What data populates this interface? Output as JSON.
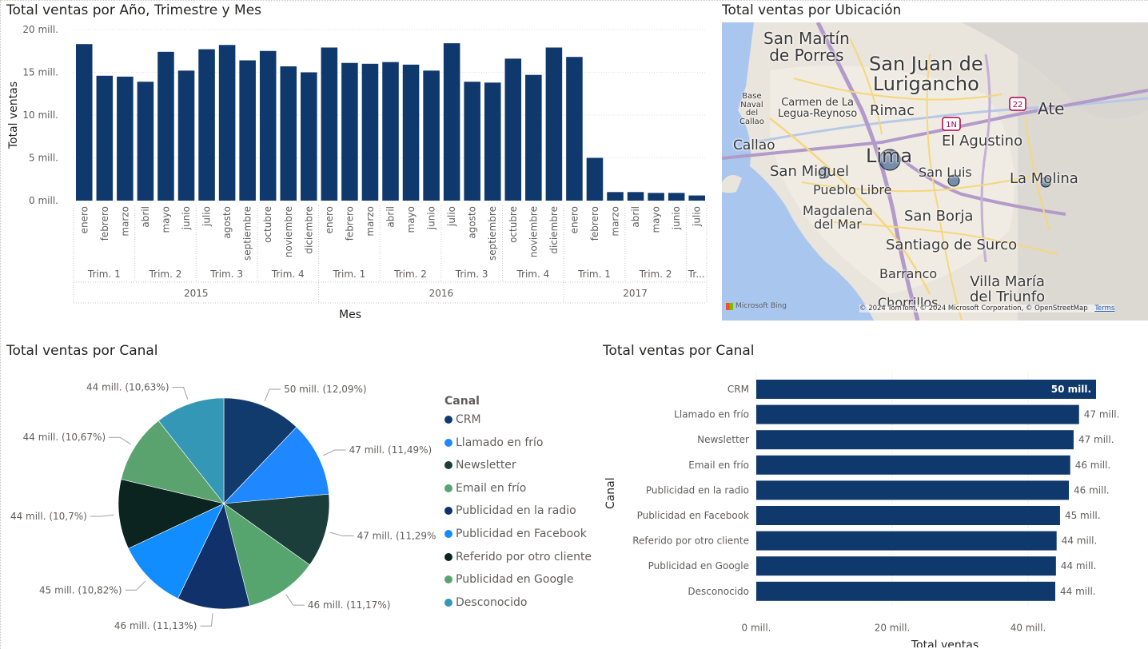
{
  "titles": {
    "bar_time": "Total ventas por Año, Trimestre y Mes",
    "map": "Total ventas por Ubicación",
    "pie": "Total ventas por Canal",
    "hbar": "Total ventas por Canal"
  },
  "colors": {
    "bar": "#0f386c",
    "text": "#252423",
    "axis_text": "#605e5c",
    "grid": "#e1dfdd"
  },
  "chart_data": [
    {
      "type": "bar",
      "title": "Total ventas por Año, Trimestre y Mes",
      "xlabel": "Mes",
      "ylabel": "Total ventas",
      "ylim": [
        0,
        20
      ],
      "yticks": [
        "0 mill.",
        "5 mill.",
        "10 mill.",
        "15 mill.",
        "20 mill."
      ],
      "grid": true,
      "categories": [
        "enero",
        "febrero",
        "marzo",
        "abril",
        "mayo",
        "junio",
        "julio",
        "agosto",
        "septiembre",
        "octubre",
        "noviembre",
        "diciembre",
        "enero",
        "febrero",
        "marzo",
        "abril",
        "mayo",
        "junio",
        "julio",
        "agosto",
        "septiembre",
        "octubre",
        "noviembre",
        "diciembre",
        "enero",
        "febrero",
        "marzo",
        "abril",
        "mayo",
        "junio",
        "julio"
      ],
      "values": [
        18.3,
        14.6,
        14.5,
        13.9,
        17.4,
        15.2,
        17.7,
        18.2,
        16.4,
        17.5,
        15.7,
        15.0,
        17.9,
        16.1,
        16.0,
        16.2,
        15.9,
        15.2,
        18.4,
        13.9,
        13.8,
        16.6,
        14.7,
        17.9,
        16.8,
        5.0,
        1.0,
        1.0,
        0.9,
        0.9,
        0.6
      ],
      "quarters": [
        {
          "label": "Trim. 1",
          "start": 0,
          "count": 3
        },
        {
          "label": "Trim. 2",
          "start": 3,
          "count": 3
        },
        {
          "label": "Trim. 3",
          "start": 6,
          "count": 3
        },
        {
          "label": "Trim. 4",
          "start": 9,
          "count": 3
        },
        {
          "label": "Trim. 1",
          "start": 12,
          "count": 3
        },
        {
          "label": "Trim. 2",
          "start": 15,
          "count": 3
        },
        {
          "label": "Trim. 3",
          "start": 18,
          "count": 3
        },
        {
          "label": "Trim. 4",
          "start": 21,
          "count": 3
        },
        {
          "label": "Trim. 1",
          "start": 24,
          "count": 3
        },
        {
          "label": "Trim. 2",
          "start": 27,
          "count": 3
        },
        {
          "label": "Tr...",
          "start": 30,
          "count": 1
        }
      ],
      "years": [
        {
          "label": "2015",
          "start": 0,
          "count": 12
        },
        {
          "label": "2016",
          "start": 12,
          "count": 12
        },
        {
          "label": "2017",
          "start": 24,
          "count": 7
        }
      ]
    },
    {
      "type": "pie",
      "title": "Total ventas por Canal",
      "legend_title": "Canal",
      "legend_position": "right",
      "slices": [
        {
          "name": "CRM",
          "label": "50 mill. (12,09%)",
          "percent": 12.09,
          "color": "#123b6d"
        },
        {
          "name": "Llamado en frío",
          "label": "47 mill. (11,49%)",
          "percent": 11.49,
          "color": "#1f87ff"
        },
        {
          "name": "Newsletter",
          "label": "47 mill. (11,29%)",
          "percent": 11.29,
          "color": "#1b3e3a"
        },
        {
          "name": "Email en frío",
          "label": "46 mill. (11,17%)",
          "percent": 11.17,
          "color": "#56a56e"
        },
        {
          "name": "Publicidad en la radio",
          "label": "46 mill. (11,13%)",
          "percent": 11.13,
          "color": "#10316a"
        },
        {
          "name": "Publicidad en Facebook",
          "label": "45 mill. (10,82%)",
          "percent": 10.82,
          "color": "#118dff"
        },
        {
          "name": "Referido por otro cliente",
          "label": "44 mill. (10,7%)",
          "percent": 10.7,
          "color": "#0b2420"
        },
        {
          "name": "Publicidad en Google",
          "label": "44 mill. (10,67%)",
          "percent": 10.67,
          "color": "#5aa36f"
        },
        {
          "name": "Desconocido",
          "label": "44 mill. (10,63%)",
          "percent": 10.63,
          "color": "#3597b6"
        }
      ]
    },
    {
      "type": "bar",
      "orientation": "horizontal",
      "title": "Total ventas por Canal",
      "xlabel": "Total ventas",
      "ylabel": "Canal",
      "xlim": [
        0,
        50
      ],
      "xticks": [
        {
          "value": 0,
          "label": "0 mill."
        },
        {
          "value": 20,
          "label": "20 mill."
        },
        {
          "value": 40,
          "label": "40 mill."
        }
      ],
      "categories": [
        "CRM",
        "Llamado en frío",
        "Newsletter",
        "Email en frío",
        "Publicidad en la radio",
        "Publicidad en Facebook",
        "Referido por otro cliente",
        "Publicidad en Google",
        "Desconocido"
      ],
      "values": [
        50,
        47.5,
        46.7,
        46.2,
        46.0,
        44.7,
        44.2,
        44.1,
        44.0
      ],
      "labels": [
        "50 mill.",
        "47 mill.",
        "47 mill.",
        "46 mill.",
        "46 mill.",
        "45 mill.",
        "44 mill.",
        "44 mill.",
        "44 mill."
      ]
    }
  ],
  "map": {
    "places": [
      {
        "name": "San Martín\nde Porres",
        "size": 20
      },
      {
        "name": "San Juan de\nLurigancho",
        "size": 24
      },
      {
        "name": "Carmen de La\nLegua-Reynoso",
        "size": 13
      },
      {
        "name": "Rimac",
        "size": 18
      },
      {
        "name": "Base\nNaval\ndel\nCallao",
        "size": 10
      },
      {
        "name": "Ate",
        "size": 20
      },
      {
        "name": "Callao",
        "size": 17
      },
      {
        "name": "El Agustino",
        "size": 18
      },
      {
        "name": "Lima",
        "size": 24
      },
      {
        "name": "San Miguel",
        "size": 18
      },
      {
        "name": "San Luis",
        "size": 16
      },
      {
        "name": "La Molina",
        "size": 18
      },
      {
        "name": "Pueblo Libre",
        "size": 16
      },
      {
        "name": "Magdalena\ndel Mar",
        "size": 16
      },
      {
        "name": "San Borja",
        "size": 18
      },
      {
        "name": "Santiago de Surco",
        "size": 18
      },
      {
        "name": "Barranco",
        "size": 16
      },
      {
        "name": "Villa María\ndel Triunfo",
        "size": 18
      },
      {
        "name": "Chorrillos",
        "size": 16
      }
    ],
    "highways": [
      "22",
      "1N"
    ],
    "bing_label": "Microsoft Bing",
    "copyright": "© 2024 TomTom, © 2024 Microsoft Corporation, © OpenStreetMap",
    "terms": "Terms"
  }
}
